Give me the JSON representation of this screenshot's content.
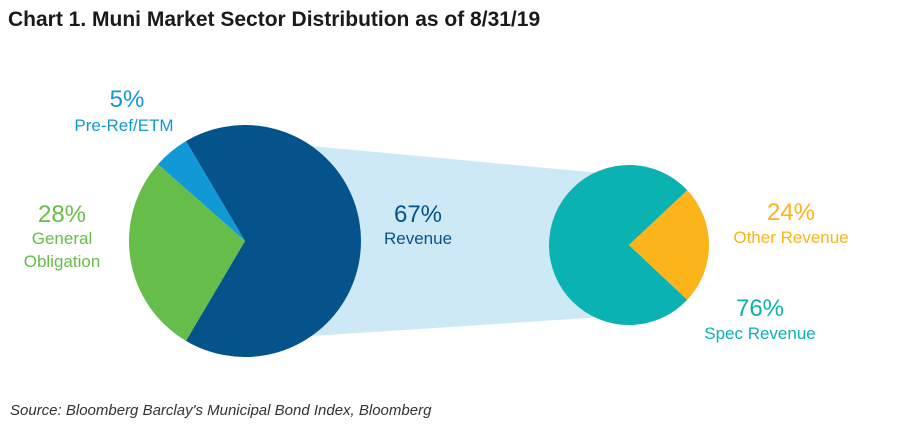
{
  "title": "Chart 1. Muni Market Sector Distribution as of 8/31/19",
  "source": "Source: Bloomberg Barclay's Municipal Bond Index, Bloomberg",
  "colors": {
    "revenue": "#05538b",
    "general_obligation": "#66bd4a",
    "pre_ref": "#1199d6",
    "spec_revenue": "#0ab3b1",
    "other_revenue": "#fbb41a",
    "connector": "#cde9f6"
  },
  "chart_data": [
    {
      "type": "pie",
      "title": "",
      "slices": [
        {
          "name": "Revenue",
          "value": 67,
          "pct": "67%",
          "color": "#05538b"
        },
        {
          "name": "General Obligation",
          "value": 28,
          "pct": "28%",
          "label_lines": [
            "General",
            "Obligation"
          ],
          "color": "#66bd4a"
        },
        {
          "name": "Pre-Ref/ETM",
          "value": 5,
          "pct": "5%",
          "color": "#1199d6"
        }
      ]
    },
    {
      "type": "pie",
      "title": "",
      "breakdown_of": "Revenue",
      "slices": [
        {
          "name": "Spec Revenue",
          "value": 76,
          "pct": "76%",
          "color": "#0ab3b1"
        },
        {
          "name": "Other Revenue",
          "value": 24,
          "pct": "24%",
          "color": "#fbb41a"
        }
      ]
    }
  ]
}
